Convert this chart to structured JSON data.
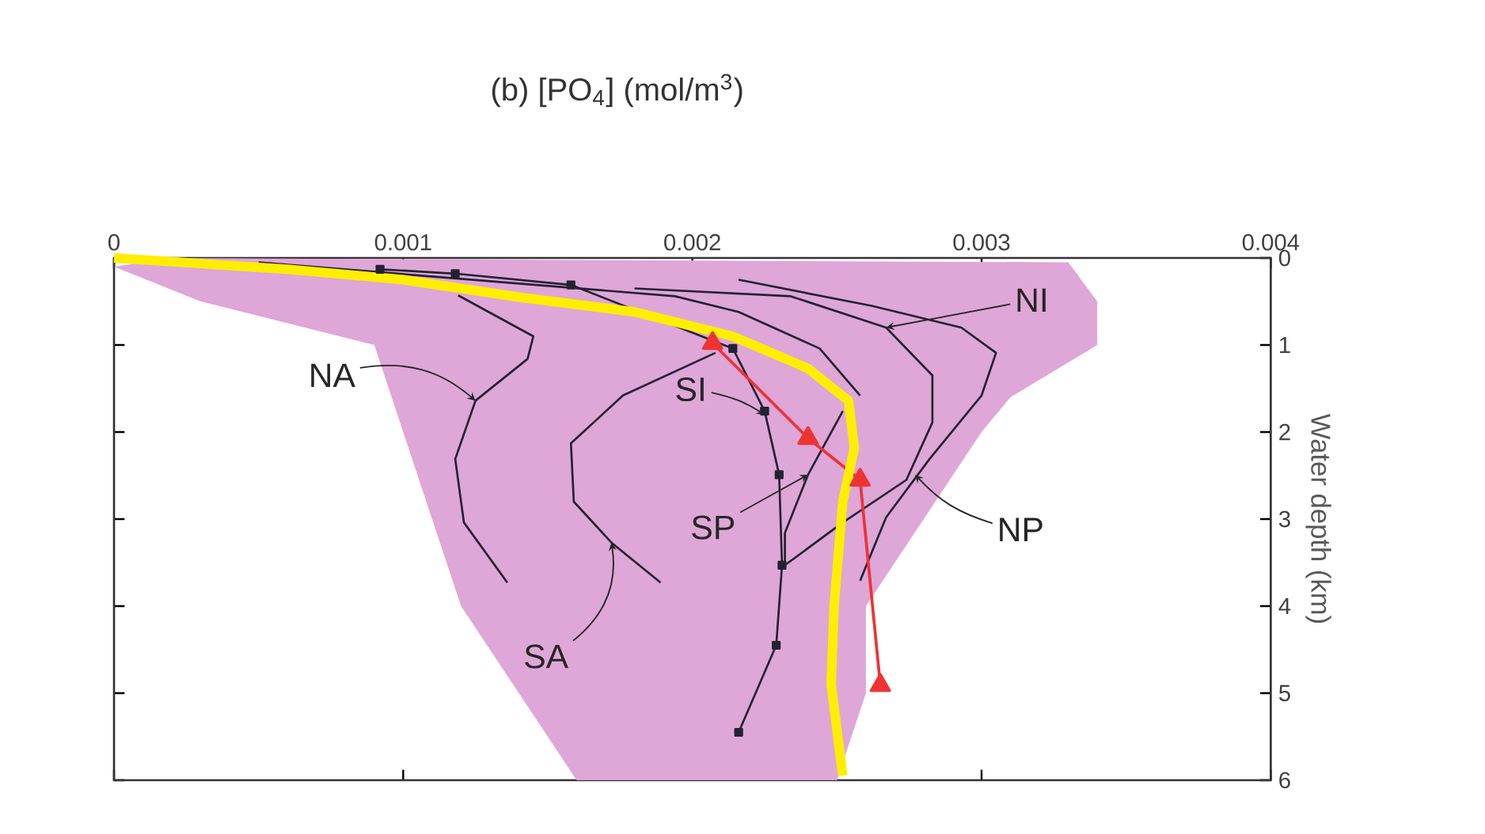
{
  "chart_data": {
    "type": "line",
    "title": "(b)  [PO$_{4}$] (mol/m$^{3}$)",
    "ylabel": "Water depth (km)",
    "xlim": [
      0,
      0.004
    ],
    "xticks": [
      0,
      0.001,
      0.002,
      0.003,
      0.004
    ],
    "ylim": [
      6,
      0
    ],
    "yticks": [
      0,
      1,
      2,
      3,
      4,
      5,
      6
    ],
    "marker": "none",
    "line_style": "solid",
    "series": [
      {
        "type": "area",
        "color": "#dfa6d8",
        "x": [
          0.0002,
          0.0033,
          0.0034,
          0.0034,
          0.0031,
          0.003,
          0.0028,
          0.0026,
          0.0026,
          0.0025,
          0.0016,
          0.0014,
          0.0012,
          0.0011,
          0.001,
          0.0009,
          0.0003,
          0
        ],
        "values": [
          0,
          0.05,
          0.5,
          1.0,
          1.6,
          2.0,
          3.0,
          4.0,
          5.0,
          6.0,
          6.0,
          5.0,
          4.0,
          3.0,
          2.0,
          1.0,
          0.5,
          0.1
        ]
      },
      {
        "color": "#222233",
        "x": [
          0.00119,
          0.00145,
          0.00143,
          0.00125,
          0.00118,
          0.00121,
          0.00136
        ],
        "values": [
          0.43,
          0.9,
          1.16,
          1.64,
          2.31,
          3.04,
          3.73
        ]
      },
      {
        "color": "#222233",
        "x": [
          0.00208,
          0.00176,
          0.00158,
          0.00159,
          0.00172,
          0.00189
        ],
        "values": [
          1.09,
          1.58,
          2.13,
          2.8,
          3.27,
          3.73
        ]
      },
      {
        "color": "#222233",
        "x": [
          0.0005,
          0.00194,
          0.00216,
          0.00244,
          0.00258
        ],
        "values": [
          0.05,
          0.44,
          0.62,
          1.04,
          1.58
        ]
      },
      {
        "color": "#222233",
        "x": [
          0.0018,
          0.00234,
          0.00267,
          0.00283,
          0.00283,
          0.00274,
          0.00252,
          0.00232
        ],
        "values": [
          0.35,
          0.44,
          0.8,
          1.35,
          1.89,
          2.55,
          3.04,
          3.53
        ]
      },
      {
        "color": "#222233",
        "x": [
          0.00216,
          0.00262,
          0.00293,
          0.00305,
          0.003,
          0.00282,
          0.00267,
          0.00258
        ],
        "values": [
          0.25,
          0.55,
          0.8,
          1.09,
          1.58,
          2.31,
          2.98,
          3.71
        ]
      },
      {
        "color": "#222233",
        "x": [
          0.00252,
          0.0024,
          0.00232,
          0.00232
        ],
        "values": [
          1.76,
          2.49,
          3.16,
          3.53
        ]
      },
      {
        "color": "#222233",
        "marker": "square",
        "x": [
          0.00092,
          0.00118,
          0.00158,
          0.00214,
          0.00225,
          0.0023,
          0.00231,
          0.00229,
          0.00216
        ],
        "values": [
          0.13,
          0.18,
          0.31,
          1.04,
          1.76,
          2.49,
          3.53,
          4.45,
          5.45
        ]
      },
      {
        "color": "#ee3333",
        "marker": "triangle",
        "x": [
          0.00207,
          0.0024,
          0.00258,
          0.00265
        ],
        "values": [
          0.98,
          2.07,
          2.55,
          4.91
        ]
      },
      {
        "color": "#ffee00",
        "x": [
          0,
          0.0006,
          0.001,
          0.0014,
          0.0018,
          0.00214,
          0.0024,
          0.00254,
          0.00256,
          0.00252,
          0.00249,
          0.00248,
          0.00252
        ],
        "values": [
          0,
          0.13,
          0.25,
          0.45,
          0.62,
          0.9,
          1.27,
          1.64,
          2.18,
          2.8,
          4.0,
          4.9,
          5.95
        ]
      }
    ],
    "annotations": [
      {
        "text": "NA",
        "x": 0.00125,
        "y": 1.64
      },
      {
        "text": "SA",
        "x": 0.00172,
        "y": 3.27
      },
      {
        "text": "SI",
        "x": 0.00225,
        "y": 1.8
      },
      {
        "text": "SP",
        "x": 0.0024,
        "y": 2.49
      },
      {
        "text": "NI",
        "x": 0.00267,
        "y": 0.8
      },
      {
        "text": "NP",
        "x": 0.00277,
        "y": 2.49
      }
    ]
  }
}
